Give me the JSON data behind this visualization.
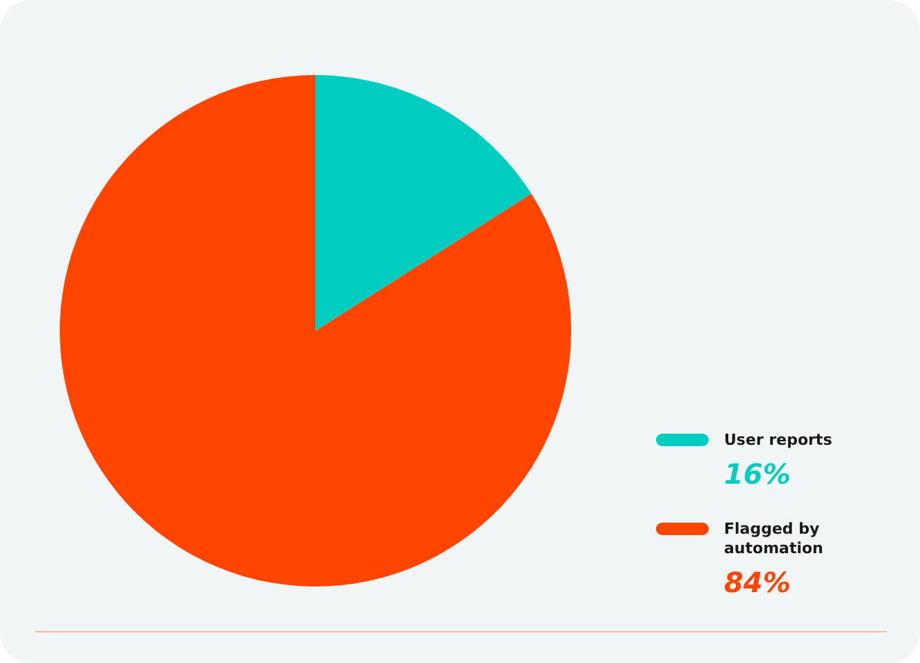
{
  "chart_data": {
    "type": "pie",
    "categories": [
      "User reports",
      "Flagged by automation"
    ],
    "values": [
      16,
      84
    ],
    "colors": [
      "#00cdc0",
      "#ff4500"
    ],
    "value_labels": [
      "16%",
      "84%"
    ],
    "legend": "right"
  }
}
